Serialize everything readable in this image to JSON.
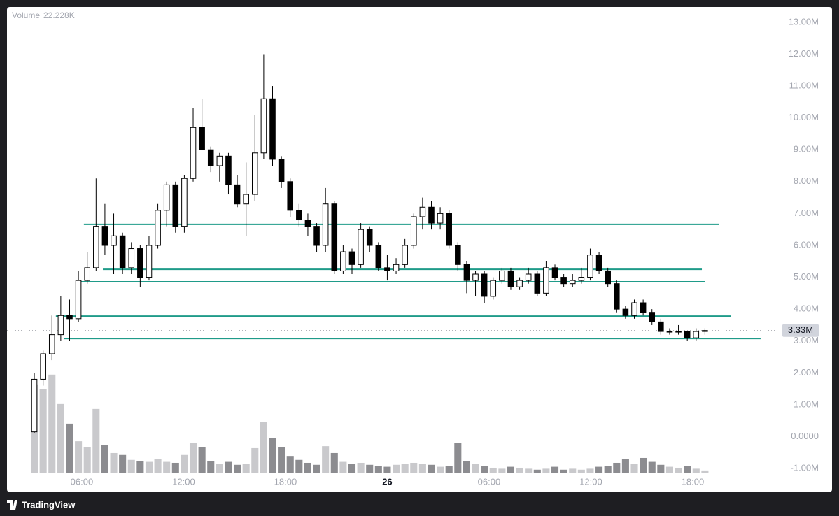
{
  "chart_data": {
    "type": "candlestick",
    "volume_title": "Volume",
    "volume_legend": {
      "value": 22.228,
      "label": "22.228K"
    },
    "last_price": {
      "value": 3.33,
      "label": "3.33M"
    },
    "up_color": "#ffffff",
    "down_color": "#000000",
    "wick_color": "#000000",
    "volume_up_color": "#c9c9cc",
    "volume_down_color": "#8c8c90",
    "level_color": "#1f9b89",
    "xlim": [
      1.59,
      47.24
    ],
    "ylim": [
      -1.13,
      13.48
    ],
    "y2lim": [
      0,
      4750
    ],
    "xticks": [
      {
        "value": 6,
        "label": "06:00"
      },
      {
        "value": 12,
        "label": "12:00"
      },
      {
        "value": 18,
        "label": "18:00"
      },
      {
        "value": 24,
        "label": "26"
      },
      {
        "value": 30,
        "label": "06:00"
      },
      {
        "value": 36,
        "label": "12:00"
      },
      {
        "value": 42,
        "label": "18:00"
      }
    ],
    "yticks": [
      {
        "value": -1,
        "label": "-1.00M"
      },
      {
        "value": 0,
        "label": "0.0000"
      },
      {
        "value": 1,
        "label": "1.00M"
      },
      {
        "value": 2,
        "label": "2.00M"
      },
      {
        "value": 3,
        "label": "3.00M"
      },
      {
        "value": 4,
        "label": "4.00M"
      },
      {
        "value": 5,
        "label": "5.00M"
      },
      {
        "value": 6,
        "label": "6.00M"
      },
      {
        "value": 7,
        "label": "7.00M"
      },
      {
        "value": 8,
        "label": "8.00M"
      },
      {
        "value": 9,
        "label": "9.00M"
      },
      {
        "value": 10,
        "label": "10.00M"
      },
      {
        "value": 11,
        "label": "11.00M"
      },
      {
        "value": 12,
        "label": "12.00M"
      },
      {
        "value": 13,
        "label": "13.00M"
      }
    ],
    "levels": [
      {
        "value": 6.66,
        "x": [
          6.12,
          43.53
        ]
      },
      {
        "value": 5.25,
        "x": [
          7.24,
          42.54
        ]
      },
      {
        "value": 4.86,
        "x": [
          5.92,
          42.74
        ]
      },
      {
        "value": 3.78,
        "x": [
          4.47,
          44.27
        ]
      },
      {
        "value": 3.08,
        "x": [
          4.93,
          46.0
        ]
      }
    ],
    "x": [
      3.2,
      3.72,
      4.24,
      4.76,
      5.28,
      5.8,
      6.32,
      6.84,
      7.36,
      7.88,
      8.4,
      8.92,
      9.44,
      9.96,
      10.48,
      11,
      11.52,
      12.04,
      12.56,
      13.08,
      13.6,
      14.12,
      14.64,
      15.16,
      15.68,
      16.2,
      16.72,
      17.24,
      17.76,
      18.28,
      18.8,
      19.32,
      19.84,
      20.36,
      20.88,
      21.4,
      21.92,
      22.44,
      22.96,
      23.48,
      24,
      24.52,
      25.04,
      25.56,
      26.08,
      26.6,
      27.12,
      27.64,
      28.16,
      28.68,
      29.2,
      29.72,
      30.24,
      30.76,
      31.28,
      31.8,
      32.32,
      32.84,
      33.36,
      33.88,
      34.4,
      34.92,
      35.44,
      35.96,
      36.48,
      37,
      37.52,
      38.04,
      38.56,
      39.08,
      39.6,
      40.12,
      40.64,
      41.16,
      41.68,
      42.2,
      42.72
    ],
    "open": [
      0.15,
      1.8,
      2.6,
      3.2,
      3.8,
      3.7,
      4.9,
      5.3,
      6.6,
      6.0,
      6.3,
      5.3,
      5.9,
      5.0,
      6.0,
      7.1,
      7.9,
      6.6,
      8.1,
      9.7,
      9.0,
      8.5,
      8.8,
      7.9,
      7.3,
      7.6,
      8.9,
      10.6,
      8.7,
      8.0,
      7.1,
      6.8,
      6.6,
      6.0,
      7.3,
      5.2,
      5.8,
      5.4,
      6.5,
      6.0,
      5.3,
      5.2,
      5.4,
      6.0,
      6.9,
      7.2,
      6.7,
      7.0,
      6.0,
      5.4,
      4.9,
      5.1,
      4.4,
      4.9,
      5.2,
      4.7,
      4.9,
      5.1,
      4.5,
      5.3,
      5.0,
      4.8,
      4.9,
      5.0,
      5.7,
      5.2,
      4.8,
      4.0,
      3.8,
      4.2,
      3.9,
      3.6,
      3.3,
      3.3,
      3.3,
      3.1,
      3.3
    ],
    "high": [
      2.0,
      2.7,
      3.8,
      4.4,
      4.3,
      5.2,
      5.8,
      8.1,
      7.3,
      7.0,
      6.4,
      6.1,
      6.0,
      6.3,
      7.3,
      8.0,
      8.0,
      8.2,
      10.3,
      10.6,
      9.1,
      8.9,
      8.9,
      8.2,
      8.6,
      10.1,
      12.0,
      11.0,
      8.8,
      8.1,
      7.3,
      7.0,
      6.7,
      7.8,
      7.4,
      6.0,
      5.9,
      6.7,
      6.6,
      6.1,
      5.7,
      5.6,
      6.2,
      7.0,
      7.5,
      7.4,
      7.2,
      7.1,
      6.1,
      5.5,
      5.2,
      5.2,
      5.0,
      5.3,
      5.3,
      5.0,
      5.3,
      5.2,
      5.5,
      5.4,
      5.1,
      5.1,
      5.3,
      5.9,
      5.8,
      5.3,
      4.9,
      4.1,
      4.3,
      4.3,
      4.0,
      3.7,
      3.4,
      3.5,
      3.3,
      3.4,
      3.4
    ],
    "low": [
      0.1,
      1.6,
      2.4,
      3.0,
      3.0,
      3.6,
      4.8,
      5.2,
      5.7,
      5.1,
      5.1,
      5.1,
      4.7,
      4.9,
      5.9,
      6.6,
      6.4,
      6.4,
      8.0,
      9.0,
      8.3,
      8.0,
      7.6,
      7.2,
      6.3,
      7.4,
      8.7,
      8.5,
      7.8,
      6.9,
      6.6,
      6.3,
      5.8,
      5.8,
      5.1,
      5.1,
      5.1,
      5.3,
      5.8,
      5.2,
      4.9,
      5.1,
      5.3,
      5.9,
      6.5,
      6.5,
      6.5,
      5.9,
      5.2,
      4.5,
      4.4,
      4.2,
      4.3,
      4.8,
      4.6,
      4.6,
      4.8,
      4.4,
      4.4,
      4.9,
      4.7,
      4.7,
      4.8,
      4.9,
      5.1,
      4.7,
      3.9,
      3.7,
      3.7,
      3.8,
      3.5,
      3.2,
      3.2,
      3.2,
      3.0,
      3.0,
      3.2
    ],
    "close": [
      1.8,
      2.6,
      3.2,
      3.8,
      3.7,
      4.9,
      5.3,
      6.6,
      6.0,
      6.3,
      5.3,
      5.9,
      5.0,
      6.0,
      7.1,
      7.9,
      6.6,
      8.1,
      9.7,
      9.0,
      8.5,
      8.8,
      7.9,
      7.3,
      7.6,
      8.9,
      10.6,
      8.7,
      8.0,
      7.1,
      6.8,
      6.6,
      6.0,
      7.3,
      5.2,
      5.8,
      5.4,
      6.5,
      6.0,
      5.3,
      5.2,
      5.4,
      6.0,
      6.9,
      7.2,
      6.7,
      7.0,
      6.0,
      5.4,
      4.9,
      5.1,
      4.4,
      4.9,
      5.2,
      4.7,
      4.9,
      5.1,
      4.5,
      5.3,
      5.0,
      4.8,
      4.9,
      5.0,
      5.7,
      5.2,
      4.8,
      4.0,
      3.8,
      4.2,
      3.9,
      3.6,
      3.3,
      3.3,
      3.3,
      3.1,
      3.3,
      3.33
    ],
    "volume": [
      900,
      850,
      1000,
      700,
      500,
      320,
      260,
      650,
      280,
      200,
      180,
      130,
      120,
      110,
      140,
      110,
      100,
      180,
      300,
      260,
      120,
      90,
      110,
      80,
      90,
      250,
      520,
      350,
      260,
      170,
      130,
      100,
      80,
      270,
      200,
      110,
      90,
      100,
      80,
      70,
      60,
      80,
      90,
      100,
      90,
      80,
      60,
      70,
      300,
      120,
      90,
      70,
      50,
      40,
      60,
      50,
      40,
      30,
      40,
      60,
      30,
      40,
      30,
      40,
      60,
      70,
      100,
      140,
      90,
      150,
      110,
      80,
      60,
      50,
      70,
      40,
      22.228
    ]
  },
  "footer": {
    "brand": "TradingView"
  }
}
